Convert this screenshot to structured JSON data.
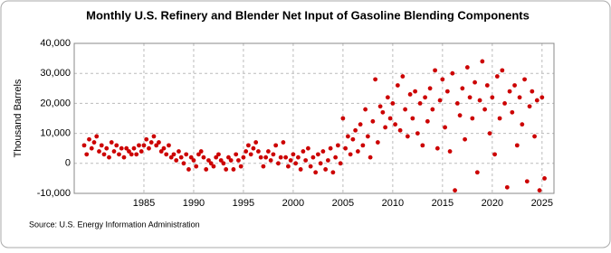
{
  "chart_data": {
    "type": "scatter",
    "title": "Monthly U.S. Refinery and Blender Net Input of Gasoline Blending Components",
    "y_label": "Thousand Barrels",
    "source": "Source: U.S. Energy Information Administration",
    "color": "#cc0000",
    "grid": true,
    "x": [
      1979,
      1979.25,
      1979.5,
      1979.75,
      1980,
      1980.25,
      1980.5,
      1980.75,
      1981,
      1981.25,
      1981.5,
      1981.75,
      1982,
      1982.25,
      1982.5,
      1982.75,
      1983,
      1983.25,
      1983.5,
      1983.75,
      1984,
      1984.25,
      1984.5,
      1984.75,
      1985,
      1985.25,
      1985.5,
      1985.75,
      1986,
      1986.25,
      1986.5,
      1986.75,
      1987,
      1987.25,
      1987.5,
      1987.75,
      1988,
      1988.25,
      1988.5,
      1988.75,
      1989,
      1989.25,
      1989.5,
      1989.75,
      1990,
      1990.25,
      1990.5,
      1990.75,
      1991,
      1991.25,
      1991.5,
      1991.75,
      1992,
      1992.25,
      1992.5,
      1992.75,
      1993,
      1993.25,
      1993.5,
      1993.75,
      1994,
      1994.25,
      1994.5,
      1994.75,
      1995,
      1995.25,
      1995.5,
      1995.75,
      1996,
      1996.25,
      1996.5,
      1996.75,
      1997,
      1997.25,
      1997.5,
      1997.75,
      1998,
      1998.25,
      1998.5,
      1998.75,
      1999,
      1999.25,
      1999.5,
      1999.75,
      2000,
      2000.25,
      2000.5,
      2000.75,
      2001,
      2001.25,
      2001.5,
      2001.75,
      2002,
      2002.25,
      2002.5,
      2002.75,
      2003,
      2003.25,
      2003.5,
      2003.75,
      2004,
      2004.25,
      2004.5,
      2004.75,
      2005,
      2005.25,
      2005.5,
      2005.75,
      2006,
      2006.25,
      2006.5,
      2006.75,
      2007,
      2007.25,
      2007.5,
      2007.75,
      2008,
      2008.25,
      2008.5,
      2008.75,
      2009,
      2009.25,
      2009.5,
      2009.75,
      2010,
      2010.25,
      2010.5,
      2010.75,
      2011,
      2011.25,
      2011.5,
      2011.75,
      2012,
      2012.25,
      2012.5,
      2012.75,
      2013,
      2013.25,
      2013.5,
      2013.75,
      2014,
      2014.25,
      2014.5,
      2014.75,
      2015,
      2015.25,
      2015.5,
      2015.75,
      2016,
      2016.25,
      2016.5,
      2016.75,
      2017,
      2017.25,
      2017.5,
      2017.75,
      2018,
      2018.25,
      2018.5,
      2018.75,
      2019,
      2019.25,
      2019.5,
      2019.75,
      2020,
      2020.25,
      2020.5,
      2020.75,
      2021,
      2021.25,
      2021.5,
      2021.75,
      2022,
      2022.25,
      2022.5,
      2022.75,
      2023,
      2023.25,
      2023.5,
      2023.75,
      2024,
      2024.25,
      2024.5,
      2024.75,
      2025,
      2025.25
    ],
    "values": [
      6000,
      3000,
      8000,
      5000,
      7000,
      9000,
      4000,
      6000,
      3000,
      5000,
      2000,
      7000,
      4000,
      6000,
      3000,
      5000,
      2000,
      5000,
      4000,
      3000,
      5000,
      3000,
      6000,
      4000,
      6000,
      8000,
      5000,
      7000,
      9000,
      6000,
      7000,
      4000,
      5000,
      3000,
      6000,
      2000,
      3000,
      1000,
      4000,
      2000,
      0,
      3000,
      -2000,
      2000,
      1000,
      -1000,
      3000,
      4000,
      2000,
      -2000,
      1000,
      0,
      -1000,
      2000,
      3000,
      1000,
      0,
      -2000,
      2000,
      1000,
      -2000,
      3000,
      1000,
      -1000,
      2000,
      4000,
      6000,
      3000,
      5000,
      7000,
      4000,
      2000,
      -1000,
      2000,
      4000,
      1000,
      3000,
      6000,
      0,
      2000,
      7000,
      2000,
      -1000,
      1000,
      3000,
      0,
      2000,
      -2000,
      4000,
      1000,
      5000,
      -1000,
      2000,
      -3000,
      3000,
      0,
      4000,
      -2000,
      1000,
      5000,
      -3000,
      2000,
      6000,
      0,
      15000,
      5000,
      9000,
      3000,
      8000,
      11000,
      4000,
      13000,
      6000,
      18000,
      9000,
      2000,
      14000,
      28000,
      7000,
      19000,
      17000,
      12000,
      22000,
      15000,
      20000,
      13000,
      26000,
      11000,
      29000,
      18000,
      9000,
      23000,
      15000,
      24000,
      10000,
      20000,
      6000,
      22000,
      14000,
      25000,
      18000,
      31000,
      5000,
      21000,
      28000,
      12000,
      24000,
      4000,
      30000,
      -9000,
      20000,
      16000,
      25000,
      8000,
      32000,
      22000,
      15000,
      27000,
      -3000,
      21000,
      34000,
      18000,
      26000,
      10000,
      22000,
      3000,
      29000,
      15000,
      31000,
      20000,
      -8000,
      24000,
      17000,
      26000,
      6000,
      22000,
      13000,
      28000,
      -6000,
      19000,
      24000,
      9000,
      21000,
      -9000,
      22000,
      -5000
    ],
    "xlim": [
      1978,
      2026.2
    ],
    "xticks": [
      1985,
      1990,
      1995,
      2000,
      2005,
      2010,
      2015,
      2020,
      2025
    ],
    "ylim": [
      -10000,
      40000
    ],
    "yticks": [
      {
        "value": -10000,
        "label": "-10,000"
      },
      0,
      {
        "value": 10000,
        "label": "10,000"
      },
      {
        "value": 20000,
        "label": "20,000"
      },
      {
        "value": 30000,
        "label": "30,000"
      },
      {
        "value": 40000,
        "label": "40,000"
      }
    ]
  }
}
